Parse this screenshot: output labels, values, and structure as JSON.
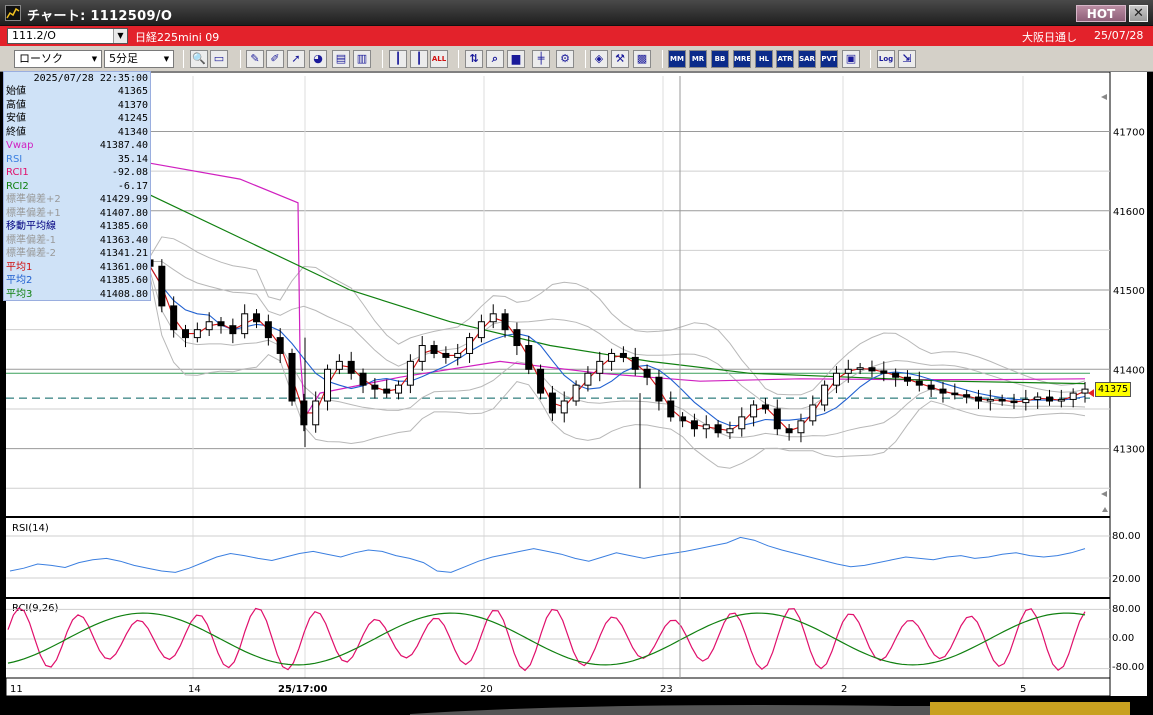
{
  "window": {
    "title": "チャート: 1112509/O",
    "hot_label": "HOT",
    "close_label": "✕"
  },
  "symbol_bar": {
    "code": "111.2/O",
    "name": "日経225mini 09",
    "market": "大阪日通し",
    "date": "25/07/28",
    "background": "#e3222b"
  },
  "toolbar": {
    "chart_type": "ローソク",
    "interval": "5分足",
    "buttons": [
      {
        "name": "zoom-button",
        "icon": "magnifier-icon",
        "label": ""
      },
      {
        "name": "window-button",
        "icon": "window-icon",
        "label": ""
      },
      {
        "name": "draw-line-button",
        "icon": "pencil-icon",
        "label": ""
      },
      {
        "name": "paint-button",
        "icon": "brush-icon",
        "label": ""
      },
      {
        "name": "cursor-button",
        "icon": "cursor-icon",
        "label": ""
      },
      {
        "name": "fill-button",
        "icon": "bucket-icon",
        "label": ""
      },
      {
        "name": "copy-button",
        "icon": "copy-icon",
        "label": ""
      },
      {
        "name": "delete-button",
        "icon": "trash-icon",
        "label": ""
      },
      {
        "name": "candle-button",
        "icon": "candle-icon",
        "label": ""
      },
      {
        "name": "candle2-button",
        "icon": "candle-icon",
        "label": ""
      },
      {
        "name": "all-button",
        "icon": "text-icon",
        "label": "ALL"
      },
      {
        "name": "compare-button",
        "icon": "compare-icon",
        "label": ""
      },
      {
        "name": "search-chart-button",
        "icon": "search-icon",
        "label": ""
      },
      {
        "name": "bar-chart-button",
        "icon": "bar-chart-icon",
        "label": ""
      },
      {
        "name": "split-button",
        "icon": "split-icon",
        "label": ""
      },
      {
        "name": "settings-button",
        "icon": "gear-icon",
        "label": ""
      },
      {
        "name": "palette-button",
        "icon": "palette-icon",
        "label": ""
      },
      {
        "name": "tools-button",
        "icon": "wrench-icon",
        "label": ""
      },
      {
        "name": "color-button",
        "icon": "rainbow-icon",
        "label": ""
      },
      {
        "name": "mm-button",
        "icon": "text-icon",
        "label": "MM"
      },
      {
        "name": "mr-button",
        "icon": "text-icon",
        "label": "MR"
      },
      {
        "name": "bb-button",
        "icon": "text-icon",
        "label": "BB"
      },
      {
        "name": "mre-button",
        "icon": "text-icon",
        "label": "MRE"
      },
      {
        "name": "hl-button",
        "icon": "text-icon",
        "label": "HL"
      },
      {
        "name": "atr-button",
        "icon": "text-icon",
        "label": "ATR"
      },
      {
        "name": "sar-button",
        "icon": "text-icon",
        "label": "SAR"
      },
      {
        "name": "pvt-button",
        "icon": "text-icon",
        "label": "PVT"
      },
      {
        "name": "box-button",
        "icon": "box-icon",
        "label": ""
      },
      {
        "name": "log-button",
        "icon": "text-icon",
        "label": "Log"
      },
      {
        "name": "export-button",
        "icon": "export-icon",
        "label": ""
      }
    ]
  },
  "info": {
    "datetime": "2025/07/28  22:35:00",
    "rows": [
      {
        "label": "始値",
        "value": "41365",
        "color": "#000000"
      },
      {
        "label": "高値",
        "value": "41370",
        "color": "#000000"
      },
      {
        "label": "安値",
        "value": "41245",
        "color": "#000000"
      },
      {
        "label": "終値",
        "value": "41340",
        "color": "#000000"
      },
      {
        "label": "Vwap",
        "value": "41387.40",
        "color": "#d020c0"
      },
      {
        "label": "RSI",
        "value": "35.14",
        "color": "#3b7fe0"
      },
      {
        "label": "RCI1",
        "value": "-92.08",
        "color": "#e0106c"
      },
      {
        "label": "RCI2",
        "value": "-6.17",
        "color": "#108010"
      },
      {
        "label": "標準偏差+2",
        "value": "41429.99",
        "color": "#999999"
      },
      {
        "label": "標準偏差+1",
        "value": "41407.80",
        "color": "#999999"
      },
      {
        "label": "移動平均線",
        "value": "41385.60",
        "color": "#000080"
      },
      {
        "label": "標準偏差-1",
        "value": "41363.40",
        "color": "#999999"
      },
      {
        "label": "標準偏差-2",
        "value": "41341.21",
        "color": "#999999"
      },
      {
        "label": "平均1",
        "value": "41361.00",
        "color": "#d01010"
      },
      {
        "label": "平均2",
        "value": "41385.60",
        "color": "#2060d0"
      },
      {
        "label": "平均3",
        "value": "41408.80",
        "color": "#108010"
      }
    ]
  },
  "price_axis": {
    "labels": [
      "41700",
      "41600",
      "41500",
      "41400",
      "41300"
    ],
    "current_price": "41375"
  },
  "rsi_panel": {
    "title": "RSI(14)",
    "labels": [
      "80.00",
      "20.00"
    ]
  },
  "rci_panel": {
    "title": "RCI(9,26)",
    "labels": [
      "80.00",
      "0.00",
      "-80.00"
    ]
  },
  "time_axis": {
    "labels": [
      "11",
      "14",
      "25/17:00",
      "20",
      "23",
      "2",
      "5"
    ]
  },
  "chart_data": [
    {
      "type": "candlestick",
      "title": "",
      "ylim": [
        41220,
        41770
      ],
      "y_ticks": [
        41700,
        41600,
        41500,
        41400,
        41300
      ],
      "x_labels": [
        "11",
        "14",
        "25/17:00",
        "20",
        "23",
        "2",
        "5"
      ],
      "close_series": [
        41530,
        41480,
        41450,
        41440,
        41450,
        41460,
        41455,
        41445,
        41470,
        41460,
        41440,
        41420,
        41360,
        41330,
        41360,
        41400,
        41410,
        41395,
        41380,
        41375,
        41370,
        41380,
        41410,
        41430,
        41420,
        41415,
        41420,
        41440,
        41460,
        41470,
        41450,
        41430,
        41400,
        41370,
        41345,
        41360,
        41380,
        41395,
        41410,
        41420,
        41415,
        41400,
        41390,
        41360,
        41340,
        41335,
        41325,
        41330,
        41320,
        41325,
        41340,
        41355,
        41350,
        41325,
        41320,
        41335,
        41355,
        41380,
        41395,
        41400,
        41402,
        41398,
        41395,
        41390,
        41385,
        41380,
        41375,
        41370,
        41368,
        41365,
        41360,
        41362,
        41360,
        41358,
        41362,
        41365,
        41360,
        41362,
        41370,
        41375
      ],
      "overlays": [
        {
          "name": "Vwap",
          "color": "#d020c0"
        },
        {
          "name": "平均1",
          "color": "#d01010"
        },
        {
          "name": "平均2",
          "color": "#2060d0"
        },
        {
          "name": "平均3",
          "color": "#108010"
        }
      ]
    },
    {
      "type": "line",
      "title": "RSI(14)",
      "ylim": [
        0,
        100
      ],
      "series": [
        {
          "name": "RSI",
          "color": "#3b7fe0",
          "values": [
            30,
            34,
            40,
            38,
            35,
            42,
            46,
            48,
            44,
            38,
            34,
            30,
            28,
            34,
            42,
            50,
            55,
            52,
            48,
            45,
            50,
            55,
            58,
            54,
            50,
            56,
            60,
            58,
            52,
            48,
            42,
            30,
            28,
            36,
            44,
            50,
            54,
            58,
            62,
            58,
            54,
            48,
            44,
            50,
            56,
            52,
            48,
            52,
            55,
            58,
            62,
            66,
            70,
            78,
            74,
            66,
            60,
            55,
            50,
            45,
            40,
            36,
            38,
            42,
            46,
            50,
            48,
            46,
            50,
            52,
            48,
            50,
            54,
            56,
            52,
            50,
            52,
            56,
            62
          ]
        }
      ]
    },
    {
      "type": "line",
      "title": "RCI(9,26)",
      "ylim": [
        -100,
        100
      ],
      "series": [
        {
          "name": "RCI1",
          "color": "#e0106c"
        },
        {
          "name": "RCI2",
          "color": "#108010"
        }
      ]
    }
  ]
}
